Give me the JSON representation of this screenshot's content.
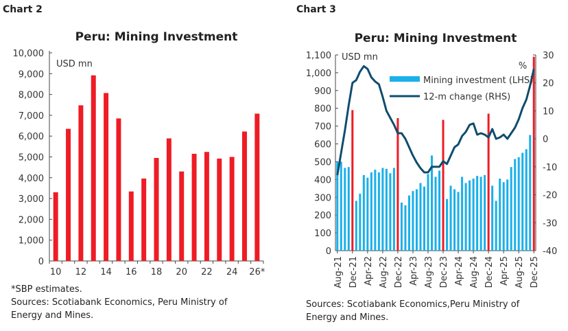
{
  "chart_data": [
    {
      "label": "Chart 2",
      "type": "bar",
      "title": "Peru: Mining Investment",
      "unit_label": "USD mn",
      "categories": [
        "10",
        "11",
        "12",
        "13",
        "14",
        "15",
        "16",
        "17",
        "18",
        "19",
        "20",
        "21",
        "22",
        "23",
        "24",
        "25",
        "26*"
      ],
      "tick_labels": [
        "10",
        "12",
        "14",
        "16",
        "18",
        "20",
        "22",
        "24",
        "26*"
      ],
      "values": [
        3300,
        6350,
        7480,
        8920,
        8070,
        6850,
        3340,
        3960,
        4950,
        5890,
        4300,
        5150,
        5240,
        4920,
        5000,
        6220,
        7080
      ],
      "ylim": [
        0,
        10000
      ],
      "yticks": [
        0,
        1000,
        2000,
        3000,
        4000,
        5000,
        6000,
        7000,
        8000,
        9000,
        10000
      ],
      "color": "#ee1c25",
      "grid": false,
      "notes": [
        "*SBP estimates.",
        "Sources: Scotiabank Economics, Peru Ministry of",
        "Energy and Mines."
      ]
    },
    {
      "label": "Chart 3",
      "type": "bar+line",
      "title": "Peru: Mining Investment",
      "unit_label": "USD mn",
      "right_unit_label": "%",
      "x_start": "Aug-21",
      "tick_labels": [
        "Aug-21",
        "Dec-21",
        "Apr-22",
        "Aug-22",
        "Dec-22",
        "Apr-23",
        "Aug-23",
        "Dec-23",
        "Apr-24",
        "Aug-24",
        "Dec-24",
        "Apr-25",
        "Aug-25",
        "Dec-25"
      ],
      "series": [
        {
          "name": "Mining investment (LHS)",
          "type": "bar",
          "axis": "left",
          "color": "#1ab0ea",
          "december_color": "#ee1c25",
          "values": [
            500,
            500,
            465,
            470,
            790,
            280,
            320,
            425,
            410,
            440,
            455,
            440,
            465,
            460,
            435,
            465,
            745,
            270,
            255,
            310,
            335,
            345,
            380,
            360,
            430,
            535,
            415,
            450,
            735,
            290,
            365,
            345,
            330,
            415,
            380,
            395,
            405,
            420,
            415,
            425,
            770,
            365,
            280,
            405,
            385,
            400,
            470,
            515,
            525,
            550,
            570,
            650,
            1090
          ]
        },
        {
          "name": "12-m change (RHS)",
          "type": "line",
          "axis": "right",
          "color": "#0f4c6e",
          "values": [
            -13,
            -5,
            3,
            12,
            20,
            21,
            24,
            26,
            25,
            22,
            20.5,
            19.5,
            15,
            10,
            7.5,
            5,
            2,
            2,
            0,
            -3,
            -6,
            -8.5,
            -10.5,
            -12,
            -12,
            -10,
            -10,
            -10,
            -8,
            -9,
            -6,
            -3,
            -2,
            1,
            2.5,
            5,
            5.5,
            1.5,
            2,
            1.5,
            0.5,
            3.5,
            0,
            0.5,
            1.5,
            0,
            2,
            4,
            7,
            11,
            14,
            19,
            25
          ]
        }
      ],
      "ylim": [
        0,
        1100
      ],
      "yticks": [
        0,
        100,
        200,
        300,
        400,
        500,
        600,
        700,
        800,
        900,
        1000,
        1100
      ],
      "y2lim": [
        -40,
        30
      ],
      "y2ticks": [
        -40,
        -30,
        -20,
        -10,
        0,
        10,
        20,
        30
      ],
      "legend": "top-right",
      "grid": false,
      "notes": [
        "Sources: Scotiabank Economics,Peru Ministry of",
        "Energy and Mines."
      ]
    }
  ]
}
